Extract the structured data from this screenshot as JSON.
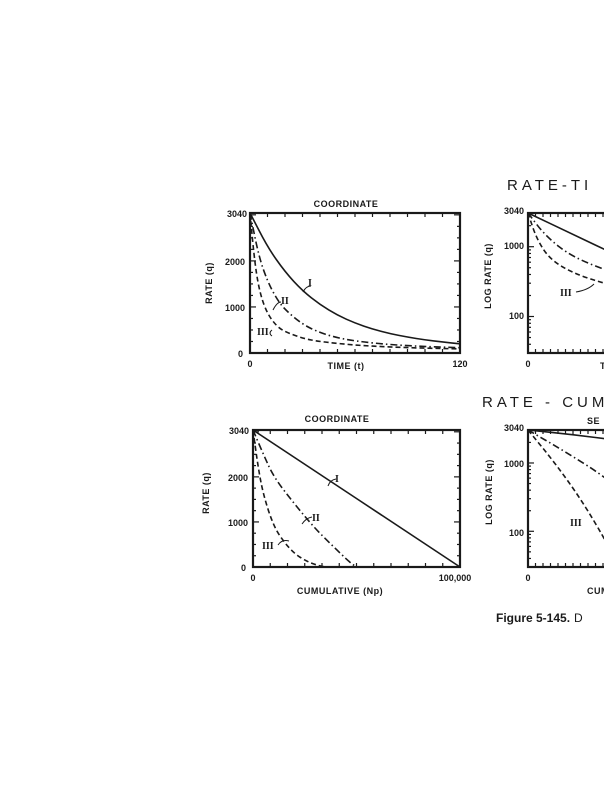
{
  "headings": {
    "rate_time": "RATE-TI",
    "rate_cum": "RATE - CUM",
    "semilog_cut": "SE"
  },
  "caption": {
    "label": "Figure 5-145.",
    "text": "D"
  },
  "chart_data": [
    {
      "id": "rate-time-coordinate",
      "type": "line",
      "title": "COORDINATE",
      "xlabel": "TIME (t)",
      "ylabel": "RATE (q)",
      "xlim": [
        0,
        120
      ],
      "ylim": [
        0,
        3040
      ],
      "xtick_labels": [
        "0",
        "120"
      ],
      "ytick_labels": [
        "0",
        "1000",
        "2000",
        "3040"
      ],
      "series": [
        {
          "name": "I",
          "style": "solid",
          "x": [
            0,
            10,
            20,
            30,
            40,
            50,
            60,
            70,
            80,
            90,
            100,
            110,
            120
          ],
          "y": [
            3040,
            2300,
            1760,
            1350,
            1050,
            820,
            650,
            520,
            420,
            345,
            285,
            240,
            200
          ]
        },
        {
          "name": "II",
          "style": "dashdot",
          "x": [
            0,
            5,
            10,
            15,
            20,
            30,
            40,
            50,
            60,
            80,
            100,
            120
          ],
          "y": [
            3040,
            2100,
            1560,
            1190,
            940,
            620,
            440,
            330,
            260,
            180,
            140,
            115
          ]
        },
        {
          "name": "III",
          "style": "dashed",
          "x": [
            0,
            3,
            6,
            10,
            15,
            20,
            30,
            40,
            60,
            80,
            100,
            120
          ],
          "y": [
            3040,
            1850,
            1250,
            850,
            590,
            460,
            320,
            245,
            170,
            130,
            105,
            90
          ]
        }
      ]
    },
    {
      "id": "rate-time-semilog",
      "type": "line",
      "title": "",
      "xlabel": "T",
      "ylabel": "LOG RATE (q)",
      "scale_y": "log",
      "ylim": [
        30,
        3040
      ],
      "xtick_labels": [
        "0"
      ],
      "ytick_labels": [
        "100",
        "1000",
        "3040"
      ],
      "series": [
        {
          "name": "I",
          "style": "solid",
          "x": [
            0,
            0.5,
            1
          ],
          "y": [
            3040,
            1500,
            740
          ]
        },
        {
          "name": "II",
          "style": "dashdot",
          "x": [
            0,
            0.2,
            0.5,
            1
          ],
          "y": [
            3040,
            1400,
            700,
            400
          ]
        },
        {
          "name": "III",
          "style": "dashed",
          "x": [
            0,
            0.1,
            0.25,
            0.5,
            0.8,
            1
          ],
          "y": [
            3040,
            1250,
            650,
            420,
            310,
            270
          ]
        }
      ],
      "annotations": [
        "III"
      ]
    },
    {
      "id": "rate-cum-coordinate",
      "type": "line",
      "title": "COORDINATE",
      "xlabel": "CUMULATIVE (Np)",
      "ylabel": "RATE (q)",
      "xlim": [
        0,
        100000
      ],
      "ylim": [
        0,
        3040
      ],
      "xtick_labels": [
        "0",
        "100,000"
      ],
      "ytick_labels": [
        "0",
        "1000",
        "2000",
        "3040"
      ],
      "series": [
        {
          "name": "I",
          "style": "solid",
          "x": [
            0,
            100000
          ],
          "y": [
            3040,
            0
          ]
        },
        {
          "name": "II",
          "style": "dashdot",
          "x": [
            0,
            5000,
            10000,
            20000,
            30000,
            40000,
            45000,
            48000,
            50000
          ],
          "y": [
            3040,
            2500,
            2000,
            1400,
            850,
            400,
            180,
            60,
            0
          ]
        },
        {
          "name": "III",
          "style": "dashed",
          "x": [
            0,
            2500,
            5000,
            10000,
            15000,
            20000,
            25000,
            30000,
            35000
          ],
          "y": [
            3040,
            2200,
            1600,
            900,
            550,
            300,
            150,
            50,
            0
          ]
        }
      ]
    },
    {
      "id": "rate-cum-semilog",
      "type": "line",
      "title": "",
      "xlabel": "CUM",
      "ylabel": "LOG RATE (q)",
      "scale_y": "log",
      "ylim": [
        30,
        3040
      ],
      "xtick_labels": [
        "0"
      ],
      "ytick_labels": [
        "100",
        "1000",
        "3040"
      ],
      "series": [
        {
          "name": "I",
          "style": "solid",
          "x": [
            0,
            0.5,
            1
          ],
          "y": [
            3040,
            2600,
            2150
          ]
        },
        {
          "name": "II",
          "style": "dashdot",
          "x": [
            0,
            0.4,
            0.8,
            1
          ],
          "y": [
            3040,
            1500,
            700,
            420
          ]
        },
        {
          "name": "III",
          "style": "dashed",
          "x": [
            0,
            0.3,
            0.6,
            0.9,
            1
          ],
          "y": [
            3040,
            1000,
            280,
            60,
            30
          ]
        }
      ],
      "annotations": [
        "III"
      ]
    }
  ]
}
